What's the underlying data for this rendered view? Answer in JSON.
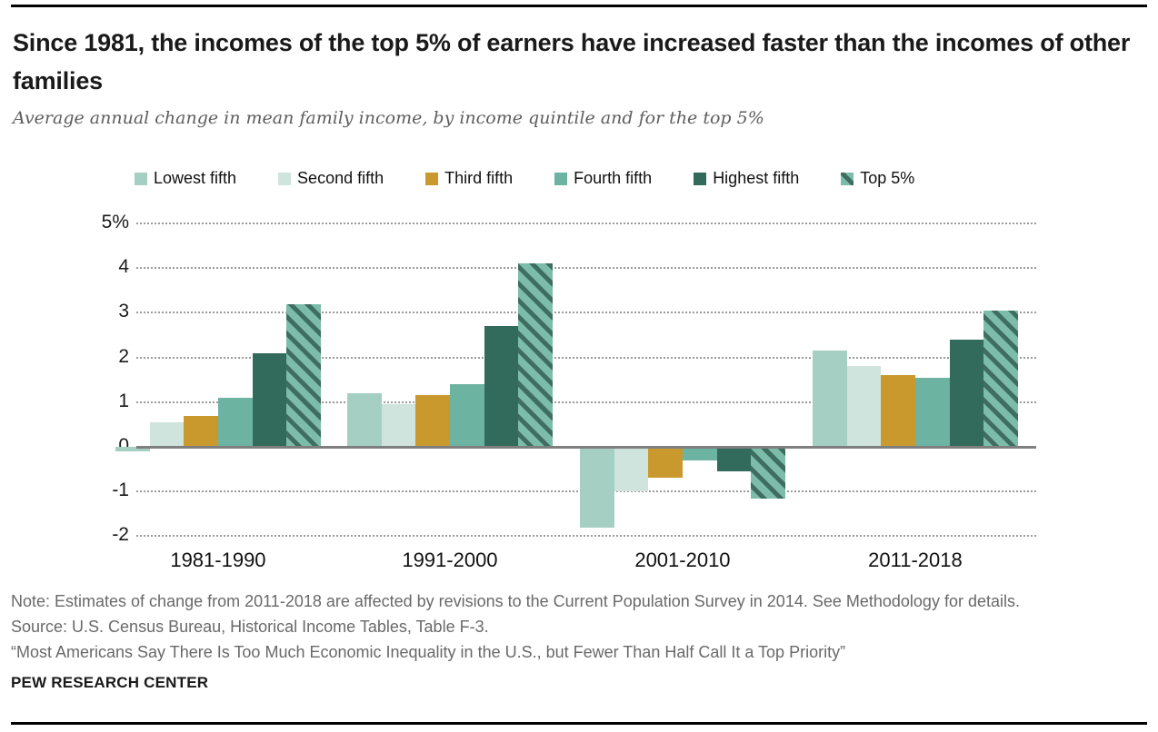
{
  "header": {
    "title": "Since 1981, the incomes of the top 5% of earners have increased faster than the incomes of other families",
    "subtitle": "Average annual change in mean family income, by income quintile and for the top 5%"
  },
  "chart_data": {
    "type": "bar",
    "title": "Average annual change in mean family income, by income quintile and for the top 5%",
    "categories": [
      "1981-1990",
      "1991-2000",
      "2001-2010",
      "2011-2018"
    ],
    "series": [
      {
        "name": "Lowest fifth",
        "color": "#a5cfc2",
        "values": [
          -0.1,
          1.2,
          -1.8,
          2.15
        ]
      },
      {
        "name": "Second fifth",
        "color": "#cee4dc",
        "values": [
          0.55,
          0.95,
          -1.0,
          1.8
        ]
      },
      {
        "name": "Third fifth",
        "color": "#c9992e",
        "values": [
          0.7,
          1.15,
          -0.7,
          1.6
        ]
      },
      {
        "name": "Fourth fifth",
        "color": "#6db3a1",
        "values": [
          1.1,
          1.4,
          -0.3,
          1.55
        ]
      },
      {
        "name": "Highest fifth",
        "color": "#326a5b",
        "values": [
          2.1,
          2.7,
          -0.55,
          2.4
        ]
      },
      {
        "name": "Top 5%",
        "color": "#7cbcab",
        "hatched": true,
        "hatch_color": "#3f6e60",
        "values": [
          3.2,
          4.1,
          -1.15,
          3.05
        ]
      }
    ],
    "y_ticks": [
      5,
      4,
      3,
      2,
      1,
      0,
      -1,
      -2
    ],
    "y_tick_labels": [
      "5%",
      "4",
      "3",
      "2",
      "1",
      "0",
      "-1",
      "-2"
    ],
    "ylim": [
      -2,
      5
    ],
    "unit_suffix": "%",
    "grid": "dotted horizontal",
    "legend_position": "top"
  },
  "footer": {
    "note": "Note: Estimates of change from 2011-2018 are affected by revisions to the Current Population Survey in 2014. See Methodology for details.",
    "source": "Source: U.S. Census Bureau, Historical Income Tables, Table F-3.",
    "report": "“Most Americans Say There Is Too Much Economic Inequality in the U.S., but Fewer Than Half Call It a Top Priority”",
    "brand": "PEW RESEARCH CENTER"
  }
}
